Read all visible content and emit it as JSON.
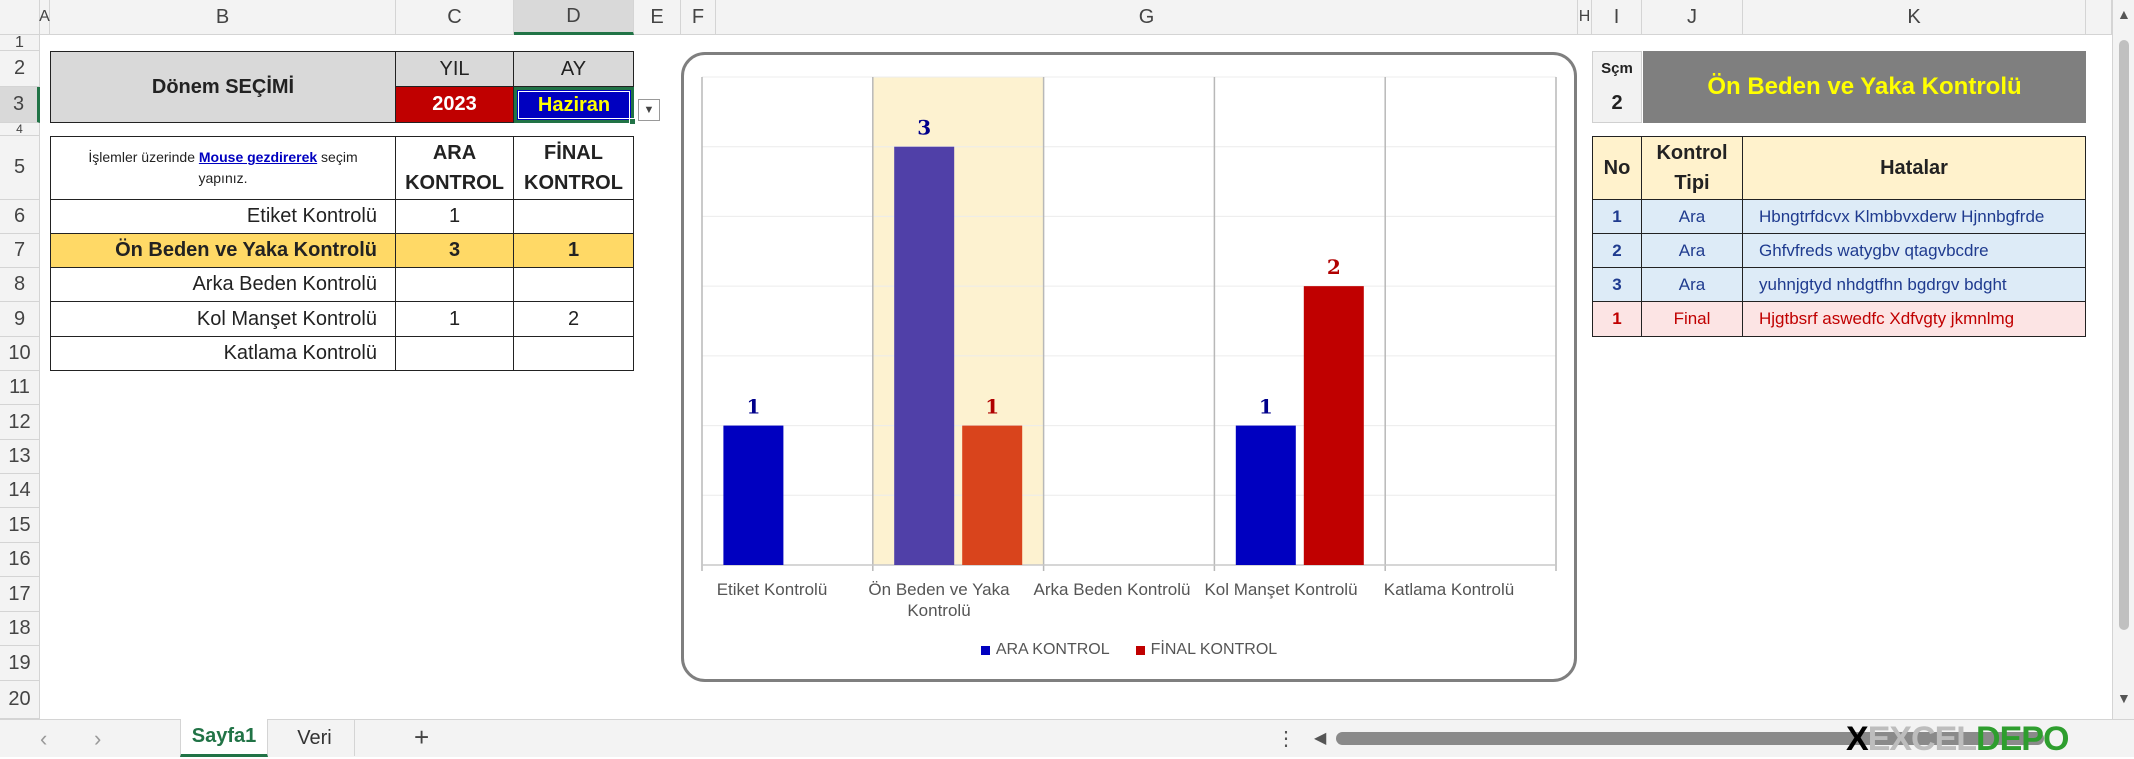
{
  "columns": [
    "A",
    "B",
    "C",
    "D",
    "E",
    "F",
    "G",
    "H",
    "I",
    "J",
    "K"
  ],
  "rows": [
    "1",
    "2",
    "3",
    "4",
    "5",
    "6",
    "7",
    "8",
    "9",
    "10",
    "11",
    "12",
    "13",
    "14",
    "15",
    "16",
    "17",
    "18",
    "19",
    "20"
  ],
  "period": {
    "title": "Dönem SEÇİMİ",
    "year_header": "YIL",
    "month_header": "AY",
    "year": "2023",
    "month": "Haziran"
  },
  "instruction": {
    "before": "İşlemler üzerinde ",
    "link": "Mouse gezdirerek",
    "after": " seçim yapınız."
  },
  "control_table": {
    "headers": [
      "ARA KONTROL",
      "FİNAL KONTROL"
    ],
    "rows": [
      {
        "name": "Etiket Kontrolü",
        "ara": "1",
        "final": ""
      },
      {
        "name": "Ön Beden ve Yaka Kontrolü",
        "ara": "3",
        "final": "1"
      },
      {
        "name": "Arka Beden Kontrolü",
        "ara": "",
        "final": ""
      },
      {
        "name": "Kol Manşet Kontrolü",
        "ara": "1",
        "final": "2"
      },
      {
        "name": "Katlama Kontrolü",
        "ara": "",
        "final": ""
      }
    ],
    "highlight_color": "#ffd966"
  },
  "chart_data": {
    "type": "bar",
    "categories": [
      "Etiket Kontrolü",
      "Ön Beden ve Yaka Kontrolü",
      "Arka Beden Kontrolü",
      "Kol Manşet Kontrolü",
      "Katlama Kontrolü"
    ],
    "series": [
      {
        "name": "ARA KONTROL",
        "values": [
          1,
          3,
          0,
          1,
          0
        ],
        "color": "#0000c0",
        "highlight_color": "#5040a8"
      },
      {
        "name": "FİNAL KONTROL",
        "values": [
          0,
          1,
          0,
          2,
          0
        ],
        "color": "#c00000",
        "highlight_color": "#d9441c"
      }
    ],
    "highlighted_category": "Ön Beden ve Yaka Kontrolü",
    "highlight_band_color": "#fdf2d0",
    "ylim": [
      0,
      3.5
    ],
    "grid": true,
    "legend": "bottom"
  },
  "selection": {
    "label": "Sçm",
    "value": "2",
    "title": "Ön Beden ve Yaka Kontrolü"
  },
  "errors_table": {
    "headers": [
      "No",
      "Kontrol Tipi",
      "Hatalar"
    ],
    "rows": [
      {
        "no": "1",
        "type": "Ara",
        "error": "Hbngtrfdcvx Klmbbvxderw Hjnnbgfrde",
        "kind": "ara"
      },
      {
        "no": "2",
        "type": "Ara",
        "error": "Ghfvfreds watygbv qtagvbcdre",
        "kind": "ara"
      },
      {
        "no": "3",
        "type": "Ara",
        "error": "yuhnjgtyd nhdgtfhn bgdrgv bdght",
        "kind": "ara"
      },
      {
        "no": "1",
        "type": "Final",
        "error": "Hjgtbsrf aswedfc Xdfvgty jkmnlmg",
        "kind": "final"
      }
    ]
  },
  "sheet_tabs": {
    "active": "Sayfa1",
    "other": "Veri",
    "add": "+"
  },
  "watermark": "EXCELDEPO"
}
